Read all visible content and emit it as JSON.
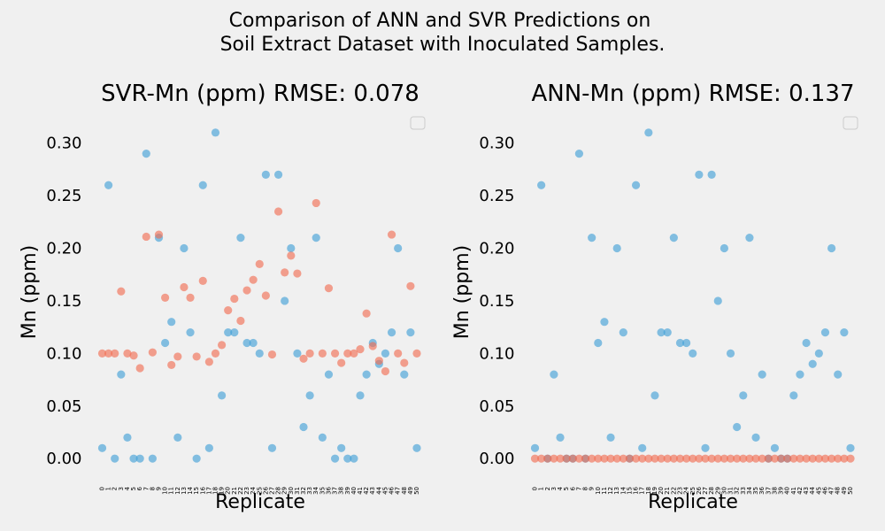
{
  "figure": {
    "suptitle_line1": "Comparison of ANN and SVR Predictions on",
    "suptitle_line2": "Soil Extract Dataset with Inoculated Samples."
  },
  "colors": {
    "actual": "#3d9ed6",
    "predicted": "#f26a4f",
    "background": "#f0f0f0",
    "legend_border": "#cccccc"
  },
  "chart_data": [
    {
      "type": "scatter",
      "title": "SVR-Mn (ppm) RMSE: 0.078",
      "xlabel": "Replicate",
      "ylabel": "Mn (ppm)",
      "ylim": [
        -0.015,
        0.325
      ],
      "xlim": [
        -1,
        51
      ],
      "yticks": [
        0.0,
        0.05,
        0.1,
        0.15,
        0.2,
        0.25,
        0.3
      ],
      "ytick_labels": [
        "0.00",
        "0.05",
        "0.10",
        "0.15",
        "0.20",
        "0.25",
        "0.30"
      ],
      "xticks": [
        0,
        1,
        2,
        3,
        4,
        5,
        6,
        7,
        8,
        9,
        10,
        11,
        12,
        13,
        14,
        15,
        16,
        17,
        18,
        19,
        20,
        21,
        22,
        23,
        24,
        25,
        26,
        27,
        28,
        29,
        30,
        31,
        32,
        33,
        34,
        35,
        36,
        37,
        38,
        39,
        40,
        41,
        42,
        43,
        44,
        45,
        46,
        47,
        48,
        49,
        50
      ],
      "grid": false,
      "legend": "top-right (empty)",
      "series": [
        {
          "values": [
            0.01,
            0.26,
            0.0,
            0.08,
            0.02,
            0.0,
            0.0,
            0.29,
            0.0,
            0.21,
            0.11,
            0.13,
            0.02,
            0.2,
            0.12,
            0.0,
            0.26,
            0.01,
            0.31,
            0.06,
            0.12,
            0.12,
            0.21,
            0.11,
            0.11,
            0.1,
            0.27,
            0.01,
            0.27,
            0.15,
            0.2,
            0.1,
            0.03,
            0.06,
            0.21,
            0.02,
            0.08,
            0.0,
            0.01,
            0.0,
            0.0,
            0.06,
            0.08,
            0.11,
            0.09,
            0.1,
            0.12,
            0.2,
            0.08,
            0.12,
            0.01
          ]
        },
        {
          "values": [
            0.1,
            0.1,
            0.1,
            0.159,
            0.1,
            0.098,
            0.086,
            0.211,
            0.101,
            0.213,
            0.153,
            0.089,
            0.097,
            0.163,
            0.153,
            0.097,
            0.169,
            0.092,
            0.1,
            0.108,
            0.141,
            0.152,
            0.131,
            0.16,
            0.17,
            0.185,
            0.155,
            0.099,
            0.235,
            0.177,
            0.193,
            0.176,
            0.095,
            0.1,
            0.243,
            0.1,
            0.162,
            0.1,
            0.091,
            0.1,
            0.1,
            0.104,
            0.138,
            0.107,
            0.093,
            0.083,
            0.213,
            0.1,
            0.091,
            0.164,
            0.1
          ]
        }
      ]
    },
    {
      "type": "scatter",
      "title": "ANN-Mn (ppm) RMSE: 0.137",
      "xlabel": "Replicate",
      "ylabel": "Mn (ppm)",
      "ylim": [
        -0.015,
        0.325
      ],
      "xlim": [
        -1,
        51
      ],
      "yticks": [
        0.0,
        0.05,
        0.1,
        0.15,
        0.2,
        0.25,
        0.3
      ],
      "ytick_labels": [
        "0.00",
        "0.05",
        "0.10",
        "0.15",
        "0.20",
        "0.25",
        "0.30"
      ],
      "xticks": [
        0,
        1,
        2,
        3,
        4,
        5,
        6,
        7,
        8,
        9,
        10,
        11,
        12,
        13,
        14,
        15,
        16,
        17,
        18,
        19,
        20,
        21,
        22,
        23,
        24,
        25,
        26,
        27,
        28,
        29,
        30,
        31,
        32,
        33,
        34,
        35,
        36,
        37,
        38,
        39,
        40,
        41,
        42,
        43,
        44,
        45,
        46,
        47,
        48,
        49,
        50
      ],
      "grid": false,
      "legend": "top-right (empty)",
      "series": [
        {
          "values": [
            0.01,
            0.26,
            0.0,
            0.08,
            0.02,
            0.0,
            0.0,
            0.29,
            0.0,
            0.21,
            0.11,
            0.13,
            0.02,
            0.2,
            0.12,
            0.0,
            0.26,
            0.01,
            0.31,
            0.06,
            0.12,
            0.12,
            0.21,
            0.11,
            0.11,
            0.1,
            0.27,
            0.01,
            0.27,
            0.15,
            0.2,
            0.1,
            0.03,
            0.06,
            0.21,
            0.02,
            0.08,
            0.0,
            0.01,
            0.0,
            0.0,
            0.06,
            0.08,
            0.11,
            0.09,
            0.1,
            0.12,
            0.2,
            0.08,
            0.12,
            0.01
          ]
        },
        {
          "values": [
            0,
            0,
            0,
            0,
            0,
            0,
            0,
            0,
            0,
            0,
            0,
            0,
            0,
            0,
            0,
            0,
            0,
            0,
            0,
            0,
            0,
            0,
            0,
            0,
            0,
            0,
            0,
            0,
            0,
            0,
            0,
            0,
            0,
            0,
            0,
            0,
            0,
            0,
            0,
            0,
            0,
            0,
            0,
            0,
            0,
            0,
            0,
            0,
            0,
            0,
            0
          ]
        }
      ]
    }
  ]
}
